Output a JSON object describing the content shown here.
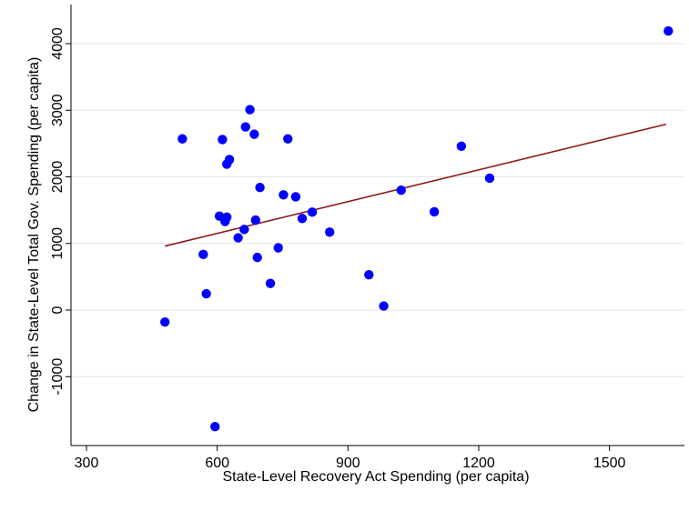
{
  "chart_data": {
    "type": "scatter",
    "title": "",
    "xlabel": "State-Level Recovery Act Spending (per capita)",
    "ylabel": "Change in State-Level Total Gov. Spending (per capita)",
    "xlim": [
      300,
      1650
    ],
    "ylim": [
      -2000,
      4300
    ],
    "xticks": [
      300,
      600,
      900,
      1200,
      1500
    ],
    "yticks": [
      -1000,
      0,
      1000,
      2000,
      3000,
      4000
    ],
    "grid": "horizontal",
    "legend": "none",
    "colors": {
      "points": "#0000ff",
      "fit_line": "#8b1a1a",
      "grid": "#e6e6e6",
      "axis": "#000000"
    },
    "points": [
      {
        "x": 480,
        "y": -180
      },
      {
        "x": 520,
        "y": 2570
      },
      {
        "x": 568,
        "y": 835
      },
      {
        "x": 575,
        "y": 245
      },
      {
        "x": 595,
        "y": -1750
      },
      {
        "x": 605,
        "y": 1410
      },
      {
        "x": 612,
        "y": 2560
      },
      {
        "x": 618,
        "y": 1330
      },
      {
        "x": 622,
        "y": 1395
      },
      {
        "x": 622,
        "y": 2190
      },
      {
        "x": 628,
        "y": 2260
      },
      {
        "x": 648,
        "y": 1085
      },
      {
        "x": 662,
        "y": 1210
      },
      {
        "x": 665,
        "y": 2750
      },
      {
        "x": 675,
        "y": 3010
      },
      {
        "x": 685,
        "y": 2640
      },
      {
        "x": 688,
        "y": 1350
      },
      {
        "x": 692,
        "y": 790
      },
      {
        "x": 698,
        "y": 1840
      },
      {
        "x": 722,
        "y": 400
      },
      {
        "x": 740,
        "y": 935
      },
      {
        "x": 752,
        "y": 1730
      },
      {
        "x": 762,
        "y": 2570
      },
      {
        "x": 780,
        "y": 1700
      },
      {
        "x": 795,
        "y": 1375
      },
      {
        "x": 818,
        "y": 1470
      },
      {
        "x": 858,
        "y": 1170
      },
      {
        "x": 948,
        "y": 530
      },
      {
        "x": 982,
        "y": 60
      },
      {
        "x": 1022,
        "y": 1800
      },
      {
        "x": 1098,
        "y": 1475
      },
      {
        "x": 1160,
        "y": 2460
      },
      {
        "x": 1225,
        "y": 1980
      },
      {
        "x": 1635,
        "y": 4190
      }
    ],
    "fit_line": {
      "x": [
        480,
        1630
      ],
      "y": [
        960,
        2790
      ]
    }
  }
}
